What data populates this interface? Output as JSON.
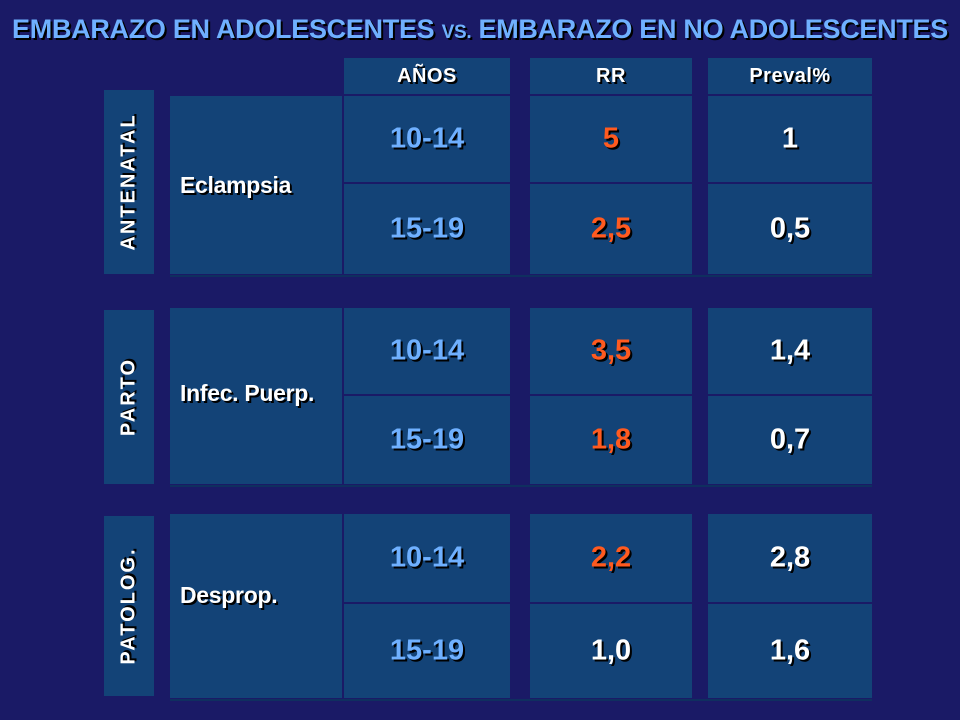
{
  "title": {
    "main": "EMBARAZO EN ADOLESCENTES ",
    "vs": "VS.",
    "rest": " EMBARAZO EN NO ADOLESCENTES"
  },
  "headers": {
    "anos": "AÑOS",
    "rr": "RR",
    "preval": "Preval%"
  },
  "sections": [
    {
      "group": "ANTENATAL",
      "condition": "Eclampsia",
      "rows": [
        {
          "anos": "10-14",
          "rr": "5",
          "preval": "1"
        },
        {
          "anos": "15-19",
          "rr": "2,5",
          "preval": "0,5"
        }
      ]
    },
    {
      "group": "PARTO",
      "condition": "Infec. Puerp.",
      "rows": [
        {
          "anos": "10-14",
          "rr": "3,5",
          "preval": "1,4"
        },
        {
          "anos": "15-19",
          "rr": "1,8",
          "preval": "0,7"
        }
      ]
    },
    {
      "group": "PATOLOG.",
      "condition": "Desprop.",
      "rows": [
        {
          "anos": "10-14",
          "rr": "2,2",
          "preval": "2,8"
        },
        {
          "anos": "15-19",
          "rr": "1,0",
          "preval": "1,6"
        }
      ]
    }
  ],
  "colors": {
    "background": "#1a1a66",
    "panel": "#134377",
    "title": "#6fb0ff",
    "rr_highlight": "#ff5a1f",
    "text": "#ffffff"
  }
}
